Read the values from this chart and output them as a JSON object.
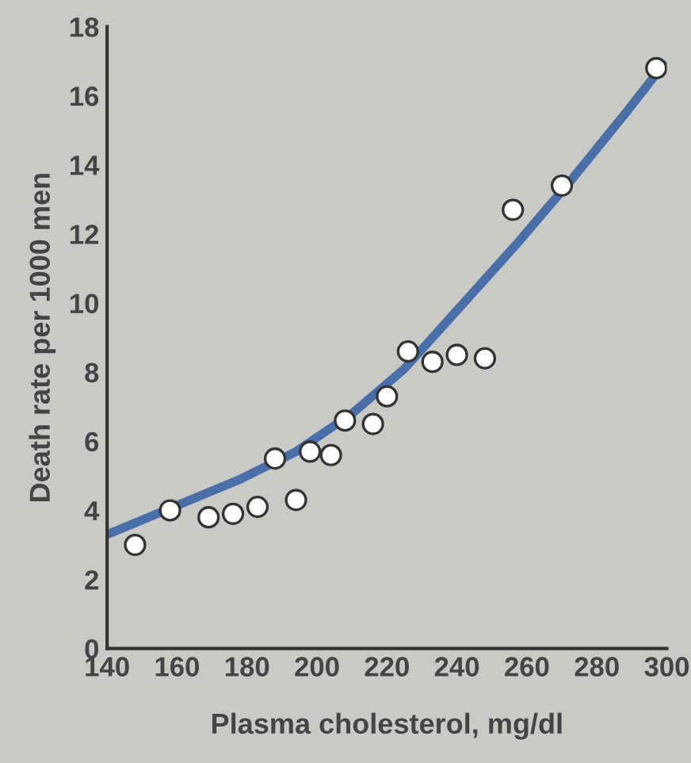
{
  "chart_data": {
    "type": "scatter",
    "xlabel": "Plasma cholesterol, mg/dl",
    "ylabel": "Death rate per 1000 men",
    "xlim": [
      140,
      300
    ],
    "xticks": [
      140,
      160,
      180,
      200,
      220,
      240,
      260,
      280,
      300
    ],
    "ylim": [
      0,
      18
    ],
    "yticks": [
      0,
      2,
      4,
      6,
      8,
      10,
      12,
      14,
      16,
      18
    ],
    "grid": false,
    "legend": false,
    "series": [
      {
        "type": "line",
        "color": "#4a6ea8",
        "marker": "none",
        "line_style": "solid",
        "x": [
          140,
          159,
          178,
          194,
          210,
          225,
          241,
          257,
          273,
          289,
          299
        ],
        "values": [
          3.3,
          4.1,
          4.9,
          5.7,
          6.8,
          8.1,
          9.9,
          11.7,
          13.6,
          15.6,
          16.9
        ]
      },
      {
        "color": "#ffffff",
        "marker": "circle",
        "x": [
          148,
          158,
          169,
          176,
          183,
          188,
          194,
          198,
          204,
          208,
          216,
          220,
          226,
          233,
          240,
          248,
          256,
          270,
          297
        ],
        "values": [
          3.0,
          4.0,
          3.8,
          3.9,
          4.1,
          5.5,
          4.3,
          5.7,
          5.6,
          6.6,
          6.5,
          7.3,
          8.6,
          8.3,
          8.5,
          8.4,
          12.7,
          13.4,
          16.8
        ]
      }
    ]
  }
}
